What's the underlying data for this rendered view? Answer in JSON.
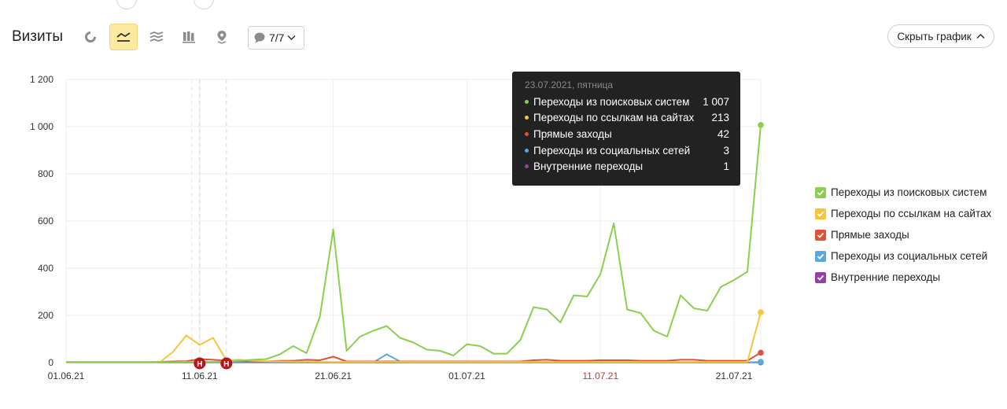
{
  "report": {
    "title": "Визиты",
    "segments_dropdown": "7/7",
    "hide_chart_button": "Скрыть график"
  },
  "colors": {
    "search": "#8bcf4f",
    "links": "#f5c53a",
    "direct": "#e05238",
    "social": "#5aa9dc",
    "internal": "#9341a4",
    "annotation": "#b8141e"
  },
  "tooltip": {
    "date": "23.07.2021, пятница",
    "rows": [
      {
        "label": "Переходы из поисковых систем",
        "value": "1 007"
      },
      {
        "label": "Переходы по ссылкам на сайтах",
        "value": "213"
      },
      {
        "label": "Прямые заходы",
        "value": "42"
      },
      {
        "label": "Переходы из социальных сетей",
        "value": "3"
      },
      {
        "label": "Внутренние переходы",
        "value": "1"
      }
    ]
  },
  "chart_data": {
    "type": "line",
    "title": "",
    "xlabel": "",
    "ylabel": "",
    "ylim": [
      0,
      1200
    ],
    "yticks": [
      "0",
      "200",
      "400",
      "600",
      "800",
      "1 000",
      "1 200"
    ],
    "xticks": [
      {
        "label": "01.06.21",
        "index": 0,
        "weekend": false
      },
      {
        "label": "11.06.21",
        "index": 10,
        "weekend": false
      },
      {
        "label": "21.06.21",
        "index": 20,
        "weekend": false
      },
      {
        "label": "01.07.21",
        "index": 30,
        "weekend": false
      },
      {
        "label": "11.07.21",
        "index": 40,
        "weekend": true
      },
      {
        "label": "21.07.21",
        "index": 50,
        "weekend": false
      }
    ],
    "x": [
      "01.06",
      "02.06",
      "03.06",
      "04.06",
      "05.06",
      "06.06",
      "07.06",
      "08.06",
      "09.06",
      "10.06",
      "11.06",
      "12.06",
      "13.06",
      "14.06",
      "15.06",
      "16.06",
      "17.06",
      "18.06",
      "19.06",
      "20.06",
      "21.06",
      "22.06",
      "23.06",
      "24.06",
      "25.06",
      "26.06",
      "27.06",
      "28.06",
      "29.06",
      "30.06",
      "01.07",
      "02.07",
      "03.07",
      "04.07",
      "05.07",
      "06.07",
      "07.07",
      "08.07",
      "09.07",
      "10.07",
      "11.07",
      "12.07",
      "13.07",
      "14.07",
      "15.07",
      "16.07",
      "17.07",
      "18.07",
      "19.07",
      "20.07",
      "21.07",
      "22.07",
      "23.07"
    ],
    "legend_position": "right",
    "grid": true,
    "series": [
      {
        "name": "Переходы из поисковых систем",
        "color": "#8bcf4f",
        "values": [
          2,
          2,
          2,
          2,
          2,
          2,
          2,
          2,
          2,
          3,
          3,
          3,
          5,
          8,
          12,
          15,
          35,
          70,
          40,
          195,
          565,
          50,
          110,
          135,
          155,
          105,
          85,
          55,
          50,
          30,
          78,
          70,
          38,
          38,
          95,
          235,
          225,
          170,
          285,
          280,
          375,
          590,
          225,
          210,
          135,
          110,
          285,
          230,
          220,
          320,
          350,
          385,
          1007
        ]
      },
      {
        "name": "Переходы по ссылкам на сайтах",
        "color": "#f5c53a",
        "values": [
          0,
          0,
          0,
          0,
          0,
          0,
          0,
          1,
          45,
          115,
          75,
          105,
          10,
          12,
          8,
          6,
          5,
          4,
          4,
          3,
          3,
          3,
          3,
          3,
          3,
          3,
          3,
          3,
          3,
          3,
          3,
          3,
          3,
          3,
          3,
          3,
          3,
          3,
          3,
          3,
          3,
          3,
          3,
          3,
          3,
          3,
          3,
          3,
          3,
          3,
          3,
          3,
          213
        ]
      },
      {
        "name": "Прямые заходы",
        "color": "#e05238",
        "values": [
          2,
          2,
          2,
          2,
          2,
          2,
          2,
          3,
          5,
          6,
          15,
          12,
          8,
          6,
          5,
          5,
          8,
          8,
          12,
          10,
          25,
          5,
          5,
          5,
          5,
          5,
          5,
          5,
          5,
          5,
          5,
          5,
          5,
          5,
          5,
          10,
          12,
          8,
          8,
          8,
          10,
          10,
          10,
          8,
          8,
          8,
          12,
          12,
          8,
          8,
          8,
          8,
          42
        ]
      },
      {
        "name": "Переходы из социальных сетей",
        "color": "#5aa9dc",
        "values": [
          1,
          1,
          1,
          1,
          1,
          1,
          1,
          1,
          1,
          1,
          1,
          1,
          1,
          1,
          1,
          1,
          1,
          1,
          1,
          1,
          1,
          1,
          1,
          1,
          35,
          5,
          1,
          1,
          1,
          1,
          1,
          1,
          1,
          1,
          1,
          1,
          1,
          1,
          1,
          1,
          1,
          1,
          1,
          1,
          1,
          1,
          1,
          1,
          1,
          1,
          1,
          1,
          3
        ]
      },
      {
        "name": "Внутренние переходы",
        "color": "#9341a4",
        "values": [
          1,
          1,
          1,
          1,
          1,
          1,
          1,
          1,
          1,
          1,
          1,
          1,
          1,
          1,
          1,
          1,
          1,
          1,
          1,
          1,
          1,
          1,
          1,
          1,
          1,
          1,
          1,
          1,
          1,
          1,
          1,
          1,
          1,
          1,
          1,
          1,
          1,
          1,
          1,
          1,
          1,
          1,
          1,
          1,
          1,
          1,
          1,
          1,
          1,
          1,
          1,
          1,
          1
        ]
      }
    ],
    "annotations": [
      {
        "label": "Н",
        "index": 10
      },
      {
        "label": "Н",
        "index": 12
      }
    ]
  }
}
